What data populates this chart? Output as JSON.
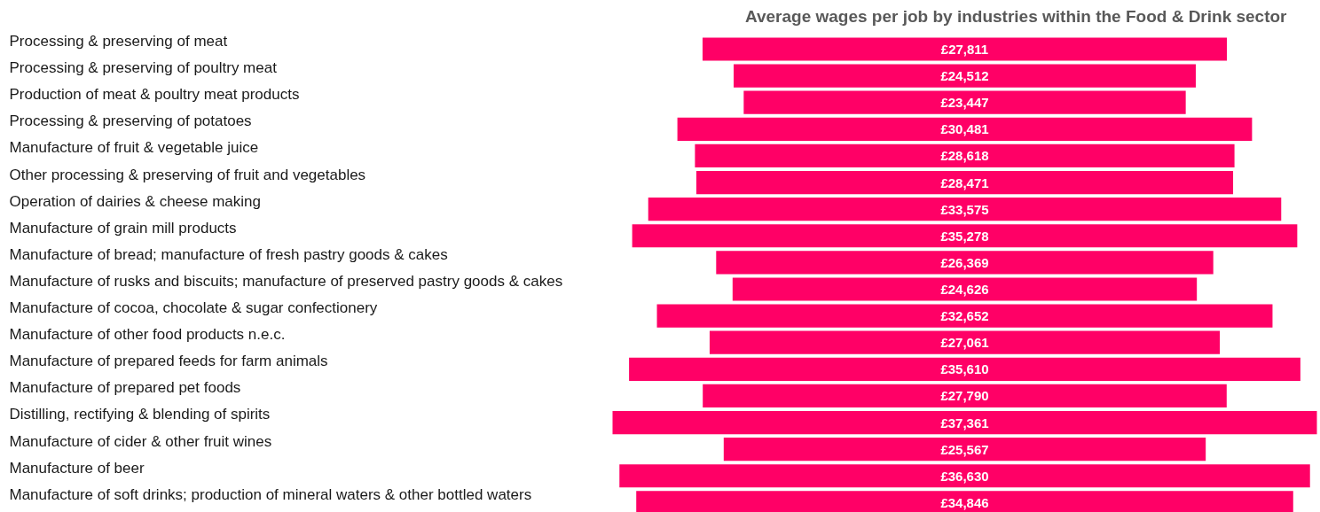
{
  "chart_data": {
    "type": "other",
    "title": "Average wages per job by industries within the Food & Drink sector",
    "categories": [
      "Processing & preserving of meat",
      "Processing & preserving of poultry meat",
      "Production of meat & poultry meat products",
      "Processing & preserving of potatoes",
      "Manufacture of fruit & vegetable juice",
      "Other processing & preserving of fruit and vegetables",
      "Operation of dairies & cheese making",
      "Manufacture of grain mill products",
      "Manufacture of bread; manufacture of fresh pastry goods & cakes",
      "Manufacture of rusks and biscuits; manufacture of preserved pastry goods & cakes",
      "Manufacture of cocoa, chocolate & sugar confectionery",
      "Manufacture of other food products n.e.c.",
      "Manufacture of prepared feeds for farm animals",
      "Manufacture of prepared pet foods",
      "Distilling, rectifying & blending of spirits",
      "Manufacture of cider & other fruit wines",
      "Manufacture of beer",
      "Manufacture of soft drinks; production of mineral waters & other bottled waters"
    ],
    "values": [
      27811,
      24512,
      23447,
      30481,
      28618,
      28471,
      33575,
      35278,
      26369,
      24626,
      32652,
      27061,
      35610,
      27790,
      37361,
      25567,
      36630,
      34846
    ],
    "value_labels": [
      "£27,811",
      "£24,512",
      "£23,447",
      "£30,481",
      "£28,618",
      "£28,471",
      "£33,575",
      "£35,278",
      "£26,369",
      "£24,626",
      "£32,652",
      "£27,061",
      "£35,610",
      "£27,790",
      "£37,361",
      "£25,567",
      "£36,630",
      "£34,846"
    ],
    "color": "#ff0066"
  }
}
